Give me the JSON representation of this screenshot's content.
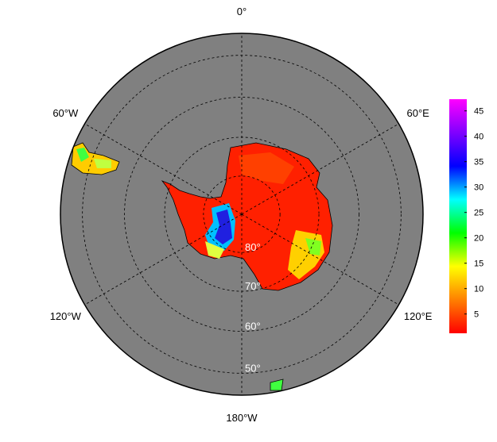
{
  "map": {
    "meridians": [
      {
        "lon": 0,
        "label": "0°"
      },
      {
        "lon": 60,
        "label": "60°E"
      },
      {
        "lon": 120,
        "label": "120°E"
      },
      {
        "lon": 180,
        "label": "180°W"
      },
      {
        "lon": -120,
        "label": "120°W"
      },
      {
        "lon": -60,
        "label": "60°W"
      }
    ],
    "parallels": [
      {
        "lat": -80,
        "label": "80°"
      },
      {
        "lat": -70,
        "label": "70°"
      },
      {
        "lat": -60,
        "label": "60°"
      },
      {
        "lat": -50,
        "label": "50°"
      }
    ],
    "colorbar": {
      "clim": [
        1.2,
        47.3
      ],
      "ticks": [
        5,
        10,
        15,
        20,
        25,
        30,
        35,
        40,
        45
      ],
      "colormap": [
        "#ff0000",
        "#ff8000",
        "#ffff00",
        "#00ff00",
        "#00ffff",
        "#0000ff",
        "#8000ff",
        "#ff00ff"
      ]
    }
  }
}
